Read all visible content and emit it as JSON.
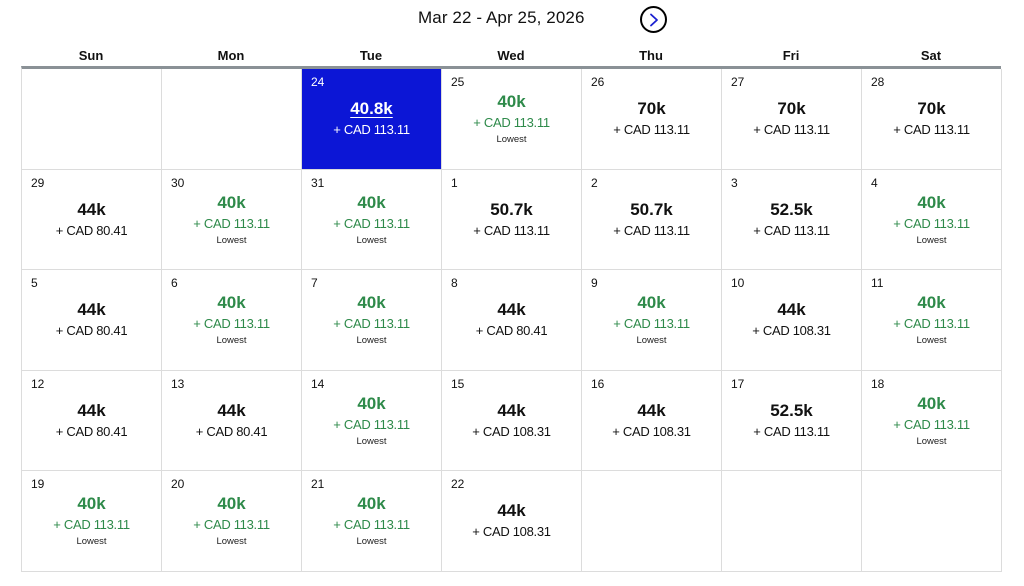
{
  "header": {
    "range_title": "Mar 22 - Apr 25, 2026",
    "next_icon": "chevron-right-circle-icon"
  },
  "colors": {
    "selected_bg": "#0c16d6",
    "lowest_green": "#2e8a4a",
    "header_rule": "#8a9196",
    "grid_line": "#dcdcdc"
  },
  "weekdays": [
    "Sun",
    "Mon",
    "Tue",
    "Wed",
    "Thu",
    "Fri",
    "Sat"
  ],
  "weeks": [
    [
      {
        "empty": true
      },
      {
        "empty": true
      },
      {
        "day": "24",
        "points": "40.8k",
        "fee": "+ CAD 113.11",
        "selected": true
      },
      {
        "day": "25",
        "points": "40k",
        "fee": "+ CAD 113.11",
        "tag": "Lowest"
      },
      {
        "day": "26",
        "points": "70k",
        "fee": "+ CAD 113.11"
      },
      {
        "day": "27",
        "points": "70k",
        "fee": "+ CAD 113.11"
      },
      {
        "day": "28",
        "points": "70k",
        "fee": "+ CAD 113.11"
      }
    ],
    [
      {
        "day": "29",
        "points": "44k",
        "fee": "+ CAD 80.41"
      },
      {
        "day": "30",
        "points": "40k",
        "fee": "+ CAD 113.11",
        "tag": "Lowest"
      },
      {
        "day": "31",
        "points": "40k",
        "fee": "+ CAD 113.11",
        "tag": "Lowest"
      },
      {
        "day": "1",
        "points": "50.7k",
        "fee": "+ CAD 113.11"
      },
      {
        "day": "2",
        "points": "50.7k",
        "fee": "+ CAD 113.11"
      },
      {
        "day": "3",
        "points": "52.5k",
        "fee": "+ CAD 113.11"
      },
      {
        "day": "4",
        "points": "40k",
        "fee": "+ CAD 113.11",
        "tag": "Lowest"
      }
    ],
    [
      {
        "day": "5",
        "points": "44k",
        "fee": "+ CAD 80.41"
      },
      {
        "day": "6",
        "points": "40k",
        "fee": "+ CAD 113.11",
        "tag": "Lowest"
      },
      {
        "day": "7",
        "points": "40k",
        "fee": "+ CAD 113.11",
        "tag": "Lowest"
      },
      {
        "day": "8",
        "points": "44k",
        "fee": "+ CAD 80.41"
      },
      {
        "day": "9",
        "points": "40k",
        "fee": "+ CAD 113.11",
        "tag": "Lowest"
      },
      {
        "day": "10",
        "points": "44k",
        "fee": "+ CAD 108.31"
      },
      {
        "day": "11",
        "points": "40k",
        "fee": "+ CAD 113.11",
        "tag": "Lowest"
      }
    ],
    [
      {
        "day": "12",
        "points": "44k",
        "fee": "+ CAD 80.41"
      },
      {
        "day": "13",
        "points": "44k",
        "fee": "+ CAD 80.41"
      },
      {
        "day": "14",
        "points": "40k",
        "fee": "+ CAD 113.11",
        "tag": "Lowest"
      },
      {
        "day": "15",
        "points": "44k",
        "fee": "+ CAD 108.31"
      },
      {
        "day": "16",
        "points": "44k",
        "fee": "+ CAD 108.31"
      },
      {
        "day": "17",
        "points": "52.5k",
        "fee": "+ CAD 113.11"
      },
      {
        "day": "18",
        "points": "40k",
        "fee": "+ CAD 113.11",
        "tag": "Lowest"
      }
    ],
    [
      {
        "day": "19",
        "points": "40k",
        "fee": "+ CAD 113.11",
        "tag": "Lowest"
      },
      {
        "day": "20",
        "points": "40k",
        "fee": "+ CAD 113.11",
        "tag": "Lowest"
      },
      {
        "day": "21",
        "points": "40k",
        "fee": "+ CAD 113.11",
        "tag": "Lowest"
      },
      {
        "day": "22",
        "points": "44k",
        "fee": "+ CAD 108.31"
      },
      {
        "empty": true
      },
      {
        "empty": true
      },
      {
        "empty": true
      }
    ]
  ]
}
